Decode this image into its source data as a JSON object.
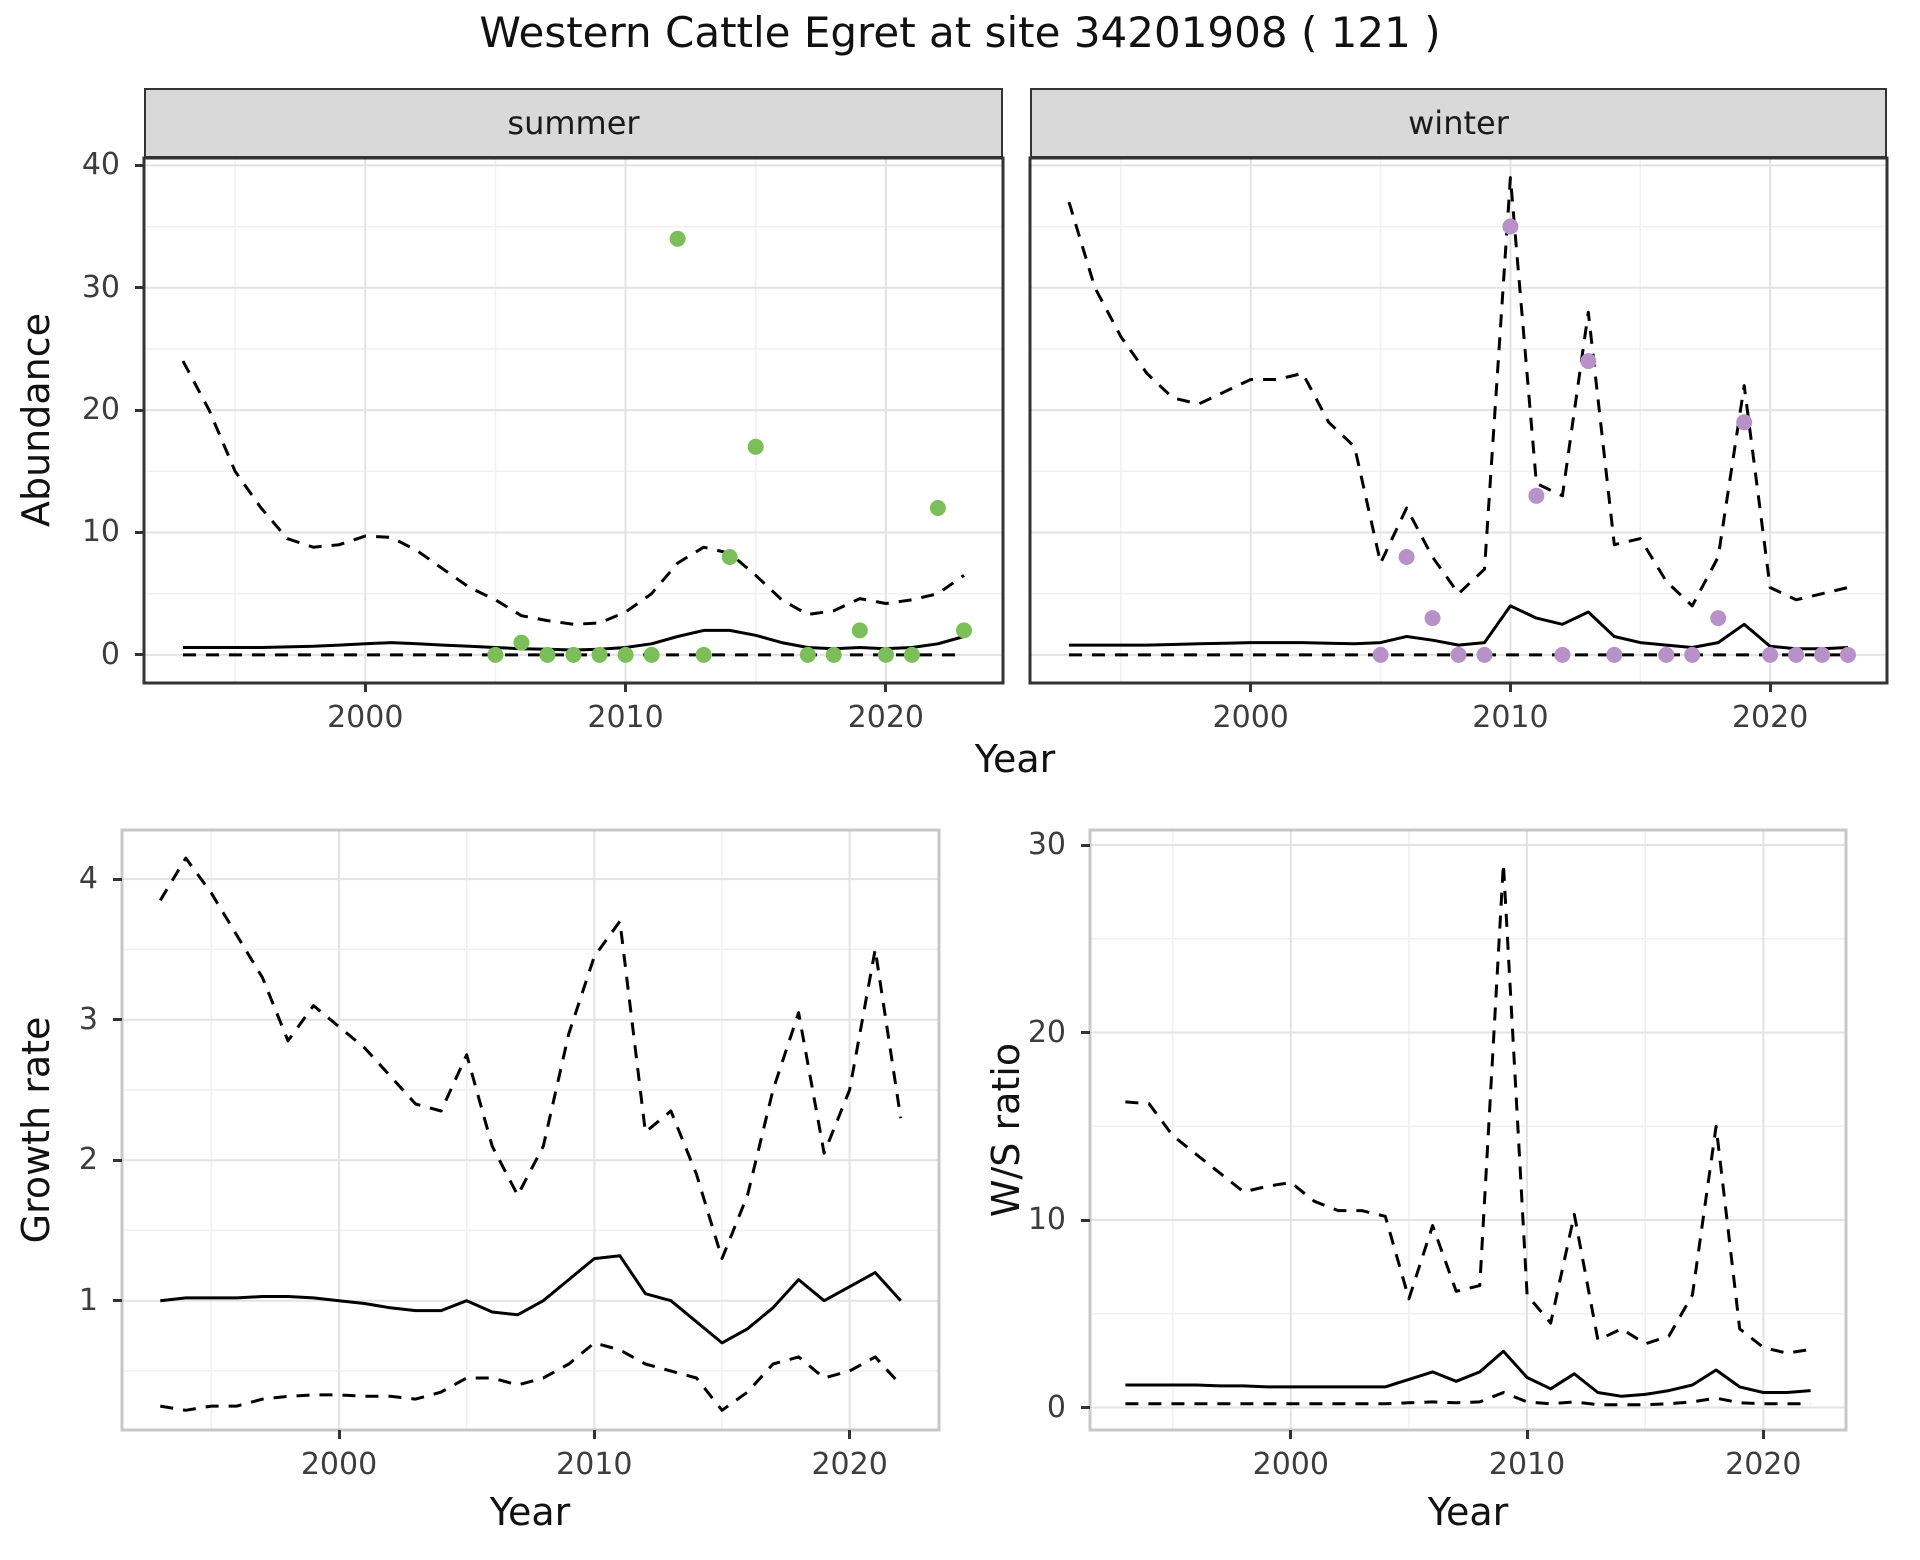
{
  "title": "Western Cattle Egret at site 34201908 ( 121 )",
  "colors": {
    "summer_points": "#7cbe5a",
    "winter_points": "#b791c8",
    "line": "#000000",
    "grid_major": "#e3e3e3",
    "grid_minor": "#f1f1f1",
    "strip_bg": "#d9d9d9",
    "panel_border_dark": "#333333",
    "panel_border_light": "#c8c8c8"
  },
  "chart_data": [
    {
      "type": "line",
      "facet_label": "summer",
      "xlabel": "Year",
      "ylabel": "Abundance",
      "xlim": [
        1991.5,
        2024.5
      ],
      "ylim": [
        -2.3,
        40.6
      ],
      "xticks": [
        2000,
        2010,
        2020
      ],
      "yticks": [
        0,
        10,
        20,
        30,
        40
      ],
      "series": [
        {
          "name": "summer-upper-credible-interval",
          "kind": "line",
          "style": "dashed",
          "color": "#000000",
          "x": [
            1993,
            1994,
            1995,
            1996,
            1997,
            1998,
            1999,
            2000,
            2001,
            2002,
            2003,
            2004,
            2005,
            2006,
            2007,
            2008,
            2009,
            2010,
            2011,
            2012,
            2013,
            2014,
            2015,
            2016,
            2017,
            2018,
            2019,
            2020,
            2021,
            2022,
            2023
          ],
          "y": [
            24,
            20,
            15,
            12,
            9.5,
            8.8,
            9,
            9.7,
            9.6,
            8.5,
            7,
            5.5,
            4.5,
            3.2,
            2.8,
            2.5,
            2.6,
            3.5,
            5,
            7.5,
            8.8,
            8.3,
            6.5,
            4.5,
            3.3,
            3.6,
            4.6,
            4.2,
            4.5,
            5,
            6.5
          ]
        },
        {
          "name": "summer-median-estimate",
          "kind": "line",
          "style": "solid",
          "color": "#000000",
          "x": [
            1993,
            1994,
            1995,
            1996,
            1997,
            1998,
            1999,
            2000,
            2001,
            2002,
            2003,
            2004,
            2005,
            2006,
            2007,
            2008,
            2009,
            2010,
            2011,
            2012,
            2013,
            2014,
            2015,
            2016,
            2017,
            2018,
            2019,
            2020,
            2021,
            2022,
            2023
          ],
          "y": [
            0.6,
            0.6,
            0.6,
            0.6,
            0.65,
            0.7,
            0.8,
            0.9,
            1,
            0.9,
            0.8,
            0.7,
            0.6,
            0.5,
            0.45,
            0.4,
            0.45,
            0.6,
            0.9,
            1.5,
            2,
            2,
            1.6,
            1,
            0.6,
            0.5,
            0.6,
            0.5,
            0.6,
            0.9,
            1.5
          ]
        },
        {
          "name": "summer-lower-credible-interval",
          "kind": "line",
          "style": "dashed",
          "color": "#000000",
          "x": [
            1993,
            1994,
            1995,
            1996,
            1997,
            1998,
            1999,
            2000,
            2001,
            2002,
            2003,
            2004,
            2005,
            2006,
            2007,
            2008,
            2009,
            2010,
            2011,
            2012,
            2013,
            2014,
            2015,
            2016,
            2017,
            2018,
            2019,
            2020,
            2021,
            2022,
            2023
          ],
          "y": [
            0,
            0,
            0,
            0,
            0,
            0,
            0,
            0,
            0,
            0,
            0,
            0,
            0,
            0,
            0,
            0,
            0,
            0,
            0,
            0,
            0,
            0,
            0,
            0,
            0,
            0,
            0,
            0,
            0,
            0,
            0
          ]
        },
        {
          "name": "summer-observed-count",
          "kind": "points",
          "color": "#7cbe5a",
          "x": [
            2005,
            2006,
            2007,
            2008,
            2009,
            2010,
            2011,
            2012,
            2013,
            2014,
            2015,
            2017,
            2018,
            2019,
            2020,
            2021,
            2022,
            2023
          ],
          "y": [
            0,
            1,
            0,
            0,
            0,
            0,
            0,
            34,
            0,
            8,
            17,
            0,
            0,
            2,
            0,
            0,
            12,
            2
          ]
        }
      ]
    },
    {
      "type": "line",
      "facet_label": "winter",
      "xlabel": "Year",
      "ylabel": "Abundance",
      "xlim": [
        1991.5,
        2024.5
      ],
      "ylim": [
        -2.3,
        40.6
      ],
      "xticks": [
        2000,
        2010,
        2020
      ],
      "yticks": [
        0,
        10,
        20,
        30,
        40
      ],
      "series": [
        {
          "name": "winter-upper-credible-interval",
          "kind": "line",
          "style": "dashed",
          "color": "#000000",
          "x": [
            1993,
            1994,
            1995,
            1996,
            1997,
            1998,
            1999,
            2000,
            2001,
            2002,
            2003,
            2004,
            2005,
            2006,
            2007,
            2008,
            2009,
            2010,
            2011,
            2012,
            2013,
            2014,
            2015,
            2016,
            2017,
            2018,
            2019,
            2020,
            2021,
            2022,
            2023
          ],
          "y": [
            37,
            30,
            26,
            23,
            21,
            20.5,
            21.5,
            22.5,
            22.5,
            23,
            19,
            17,
            7.5,
            12,
            8,
            5,
            7,
            39,
            14,
            13,
            28,
            9,
            9.5,
            6,
            4,
            8,
            22,
            5.5,
            4.5,
            5,
            5.5
          ]
        },
        {
          "name": "winter-median-estimate",
          "kind": "line",
          "style": "solid",
          "color": "#000000",
          "x": [
            1993,
            1994,
            1995,
            1996,
            1997,
            1998,
            1999,
            2000,
            2001,
            2002,
            2003,
            2004,
            2005,
            2006,
            2007,
            2008,
            2009,
            2010,
            2011,
            2012,
            2013,
            2014,
            2015,
            2016,
            2017,
            2018,
            2019,
            2020,
            2021,
            2022,
            2023
          ],
          "y": [
            0.8,
            0.8,
            0.8,
            0.8,
            0.85,
            0.9,
            0.95,
            1,
            1,
            1,
            0.95,
            0.9,
            1,
            1.5,
            1.2,
            0.8,
            1,
            4,
            3,
            2.5,
            3.5,
            1.5,
            1,
            0.8,
            0.6,
            1,
            2.5,
            0.7,
            0.5,
            0.5,
            0.6
          ]
        },
        {
          "name": "winter-lower-credible-interval",
          "kind": "line",
          "style": "dashed",
          "color": "#000000",
          "x": [
            1993,
            1994,
            1995,
            1996,
            1997,
            1998,
            1999,
            2000,
            2001,
            2002,
            2003,
            2004,
            2005,
            2006,
            2007,
            2008,
            2009,
            2010,
            2011,
            2012,
            2013,
            2014,
            2015,
            2016,
            2017,
            2018,
            2019,
            2020,
            2021,
            2022,
            2023
          ],
          "y": [
            0,
            0,
            0,
            0,
            0,
            0,
            0,
            0,
            0,
            0,
            0,
            0,
            0,
            0,
            0,
            0,
            0,
            0,
            0,
            0,
            0,
            0,
            0,
            0,
            0,
            0,
            0,
            0,
            0,
            0,
            0
          ]
        },
        {
          "name": "winter-observed-count",
          "kind": "points",
          "color": "#b791c8",
          "x": [
            2005,
            2006,
            2007,
            2008,
            2009,
            2010,
            2011,
            2012,
            2013,
            2014,
            2016,
            2017,
            2018,
            2019,
            2020,
            2021,
            2022,
            2023
          ],
          "y": [
            0,
            8,
            3,
            0,
            0,
            35,
            13,
            0,
            24,
            0,
            0,
            0,
            3,
            19,
            0,
            0,
            0,
            0
          ]
        }
      ]
    },
    {
      "type": "line",
      "facet_label": "",
      "xlabel": "Year",
      "ylabel": "Growth rate",
      "xlim": [
        1991.5,
        2023.5
      ],
      "ylim": [
        0.08,
        4.35
      ],
      "xticks": [
        2000,
        2010,
        2020
      ],
      "yticks": [
        1,
        2,
        3,
        4
      ],
      "series": [
        {
          "name": "growth-upper-credible-interval",
          "kind": "line",
          "style": "dashed",
          "color": "#000000",
          "x": [
            1993,
            1994,
            1995,
            1996,
            1997,
            1998,
            1999,
            2000,
            2001,
            2002,
            2003,
            2004,
            2005,
            2006,
            2007,
            2008,
            2009,
            2010,
            2011,
            2012,
            2013,
            2014,
            2015,
            2016,
            2017,
            2018,
            2019,
            2020,
            2021,
            2022
          ],
          "y": [
            3.85,
            4.15,
            3.9,
            3.6,
            3.3,
            2.85,
            3.1,
            2.95,
            2.8,
            2.6,
            2.4,
            2.35,
            2.75,
            2.1,
            1.75,
            2.1,
            2.9,
            3.45,
            3.7,
            2.2,
            2.35,
            1.9,
            1.3,
            1.75,
            2.5,
            3.05,
            2.05,
            2.5,
            3.5,
            2.3
          ]
        },
        {
          "name": "growth-median-estimate",
          "kind": "line",
          "style": "solid",
          "color": "#000000",
          "x": [
            1993,
            1994,
            1995,
            1996,
            1997,
            1998,
            1999,
            2000,
            2001,
            2002,
            2003,
            2004,
            2005,
            2006,
            2007,
            2008,
            2009,
            2010,
            2011,
            2012,
            2013,
            2014,
            2015,
            2016,
            2017,
            2018,
            2019,
            2020,
            2021,
            2022
          ],
          "y": [
            1,
            1.02,
            1.02,
            1.02,
            1.03,
            1.03,
            1.02,
            1,
            0.98,
            0.95,
            0.93,
            0.93,
            1,
            0.92,
            0.9,
            1,
            1.15,
            1.3,
            1.32,
            1.05,
            1,
            0.85,
            0.7,
            0.8,
            0.95,
            1.15,
            1,
            1.1,
            1.2,
            1
          ]
        },
        {
          "name": "growth-lower-credible-interval",
          "kind": "line",
          "style": "dashed",
          "color": "#000000",
          "x": [
            1993,
            1994,
            1995,
            1996,
            1997,
            1998,
            1999,
            2000,
            2001,
            2002,
            2003,
            2004,
            2005,
            2006,
            2007,
            2008,
            2009,
            2010,
            2011,
            2012,
            2013,
            2014,
            2015,
            2016,
            2017,
            2018,
            2019,
            2020,
            2021,
            2022
          ],
          "y": [
            0.25,
            0.22,
            0.25,
            0.25,
            0.3,
            0.32,
            0.33,
            0.33,
            0.32,
            0.32,
            0.3,
            0.35,
            0.45,
            0.45,
            0.4,
            0.45,
            0.55,
            0.7,
            0.65,
            0.55,
            0.5,
            0.45,
            0.22,
            0.35,
            0.55,
            0.6,
            0.45,
            0.5,
            0.6,
            0.4
          ]
        }
      ]
    },
    {
      "type": "line",
      "facet_label": "",
      "xlabel": "Year",
      "ylabel": "W/S ratio",
      "xlim": [
        1991.5,
        2023.5
      ],
      "ylim": [
        -1.2,
        30.8
      ],
      "xticks": [
        2000,
        2010,
        2020
      ],
      "yticks": [
        0,
        10,
        20,
        30
      ],
      "series": [
        {
          "name": "ws-upper-credible-interval",
          "kind": "line",
          "style": "dashed",
          "color": "#000000",
          "x": [
            1993,
            1994,
            1995,
            1996,
            1997,
            1998,
            1999,
            2000,
            2001,
            2002,
            2003,
            2004,
            2005,
            2006,
            2007,
            2008,
            2009,
            2010,
            2011,
            2012,
            2013,
            2014,
            2015,
            2016,
            2017,
            2018,
            2019,
            2020,
            2021,
            2022
          ],
          "y": [
            16.3,
            16.2,
            14.5,
            13.5,
            12.5,
            11.5,
            11.8,
            12,
            11,
            10.5,
            10.5,
            10.2,
            5.8,
            9.7,
            6.2,
            6.5,
            29,
            6,
            4.5,
            10.3,
            3.6,
            4.2,
            3.4,
            3.8,
            6,
            15,
            4.2,
            3.2,
            2.9,
            3.1
          ]
        },
        {
          "name": "ws-median-estimate",
          "kind": "line",
          "style": "solid",
          "color": "#000000",
          "x": [
            1993,
            1994,
            1995,
            1996,
            1997,
            1998,
            1999,
            2000,
            2001,
            2002,
            2003,
            2004,
            2005,
            2006,
            2007,
            2008,
            2009,
            2010,
            2011,
            2012,
            2013,
            2014,
            2015,
            2016,
            2017,
            2018,
            2019,
            2020,
            2021,
            2022
          ],
          "y": [
            1.2,
            1.2,
            1.2,
            1.2,
            1.15,
            1.15,
            1.1,
            1.1,
            1.1,
            1.1,
            1.1,
            1.1,
            1.5,
            1.9,
            1.4,
            1.9,
            3,
            1.6,
            1,
            1.8,
            0.8,
            0.6,
            0.7,
            0.9,
            1.2,
            2,
            1.1,
            0.8,
            0.8,
            0.9
          ]
        },
        {
          "name": "ws-lower-credible-interval",
          "kind": "line",
          "style": "dashed",
          "color": "#000000",
          "x": [
            1993,
            1994,
            1995,
            1996,
            1997,
            1998,
            1999,
            2000,
            2001,
            2002,
            2003,
            2004,
            2005,
            2006,
            2007,
            2008,
            2009,
            2010,
            2011,
            2012,
            2013,
            2014,
            2015,
            2016,
            2017,
            2018,
            2019,
            2020,
            2021,
            2022
          ],
          "y": [
            0.2,
            0.2,
            0.2,
            0.2,
            0.2,
            0.2,
            0.2,
            0.2,
            0.2,
            0.2,
            0.2,
            0.2,
            0.25,
            0.3,
            0.25,
            0.3,
            0.8,
            0.3,
            0.2,
            0.3,
            0.15,
            0.15,
            0.15,
            0.2,
            0.3,
            0.5,
            0.25,
            0.2,
            0.2,
            0.2
          ]
        }
      ]
    }
  ]
}
